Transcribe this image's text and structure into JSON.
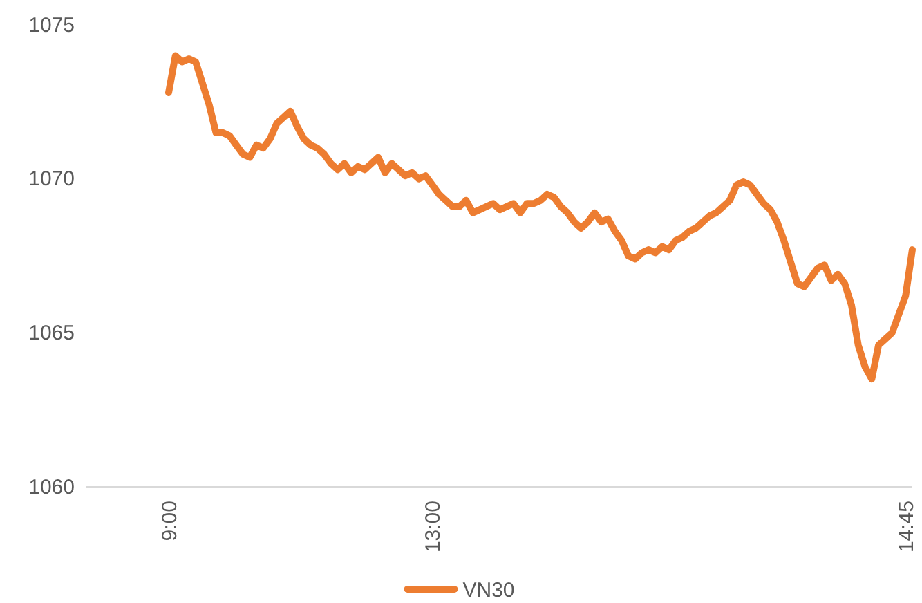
{
  "chart_data": {
    "type": "line",
    "categories": [
      "9:00",
      null,
      null,
      null,
      null,
      null,
      null,
      null,
      null,
      null,
      null,
      null,
      null,
      null,
      null,
      null,
      null,
      null,
      null,
      null,
      null,
      null,
      null,
      null,
      null,
      null,
      null,
      null,
      null,
      null,
      null,
      null,
      null,
      null,
      null,
      null,
      null,
      null,
      null,
      "13:00",
      null,
      null,
      null,
      null,
      null,
      null,
      null,
      null,
      null,
      null,
      null,
      null,
      null,
      null,
      null,
      null,
      null,
      null,
      null,
      null,
      null,
      null,
      null,
      null,
      null,
      null,
      null,
      null,
      null,
      null,
      null,
      null,
      null,
      null,
      null,
      null,
      null,
      null,
      null,
      null,
      null,
      null,
      null,
      null,
      null,
      null,
      null,
      null,
      null,
      null,
      null,
      null,
      null,
      null,
      null,
      null,
      null,
      null,
      null,
      null,
      null,
      null,
      null,
      null,
      null,
      null,
      null,
      null,
      null,
      "14:45",
      null
    ],
    "series": [
      {
        "name": "VN30",
        "color": "#ed7d31",
        "values": [
          1072.8,
          1074.0,
          1073.8,
          1073.9,
          1073.8,
          1073.1,
          1072.4,
          1071.5,
          1071.5,
          1071.4,
          1071.1,
          1070.8,
          1070.7,
          1071.1,
          1071.0,
          1071.3,
          1071.8,
          1072.0,
          1072.2,
          1071.7,
          1071.3,
          1071.1,
          1071.0,
          1070.8,
          1070.5,
          1070.3,
          1070.5,
          1070.2,
          1070.4,
          1070.3,
          1070.5,
          1070.7,
          1070.2,
          1070.5,
          1070.3,
          1070.1,
          1070.2,
          1070.0,
          1070.1,
          1069.8,
          1069.5,
          1069.3,
          1069.1,
          1069.1,
          1069.3,
          1068.9,
          1069.0,
          1069.1,
          1069.2,
          1069.0,
          1069.1,
          1069.2,
          1068.9,
          1069.2,
          1069.2,
          1069.3,
          1069.5,
          1069.4,
          1069.1,
          1068.9,
          1068.6,
          1068.4,
          1068.6,
          1068.9,
          1068.6,
          1068.7,
          1068.3,
          1068.0,
          1067.5,
          1067.4,
          1067.6,
          1067.7,
          1067.6,
          1067.8,
          1067.7,
          1068.0,
          1068.1,
          1068.3,
          1068.4,
          1068.6,
          1068.8,
          1068.9,
          1069.1,
          1069.3,
          1069.8,
          1069.9,
          1069.8,
          1069.5,
          1069.2,
          1069.0,
          1068.6,
          1068.0,
          1067.3,
          1066.6,
          1066.5,
          1066.8,
          1067.1,
          1067.2,
          1066.7,
          1066.9,
          1066.6,
          1065.9,
          1064.6,
          1063.9,
          1063.5,
          1064.6,
          1064.8,
          1065.0,
          1065.6,
          1066.2,
          1067.7
        ]
      }
    ],
    "ylim": [
      1060,
      1075
    ],
    "yticks": [
      1060,
      1065,
      1070,
      1075
    ],
    "grid": false,
    "legend": "bottom",
    "line_style": "solid",
    "marker": "none"
  }
}
